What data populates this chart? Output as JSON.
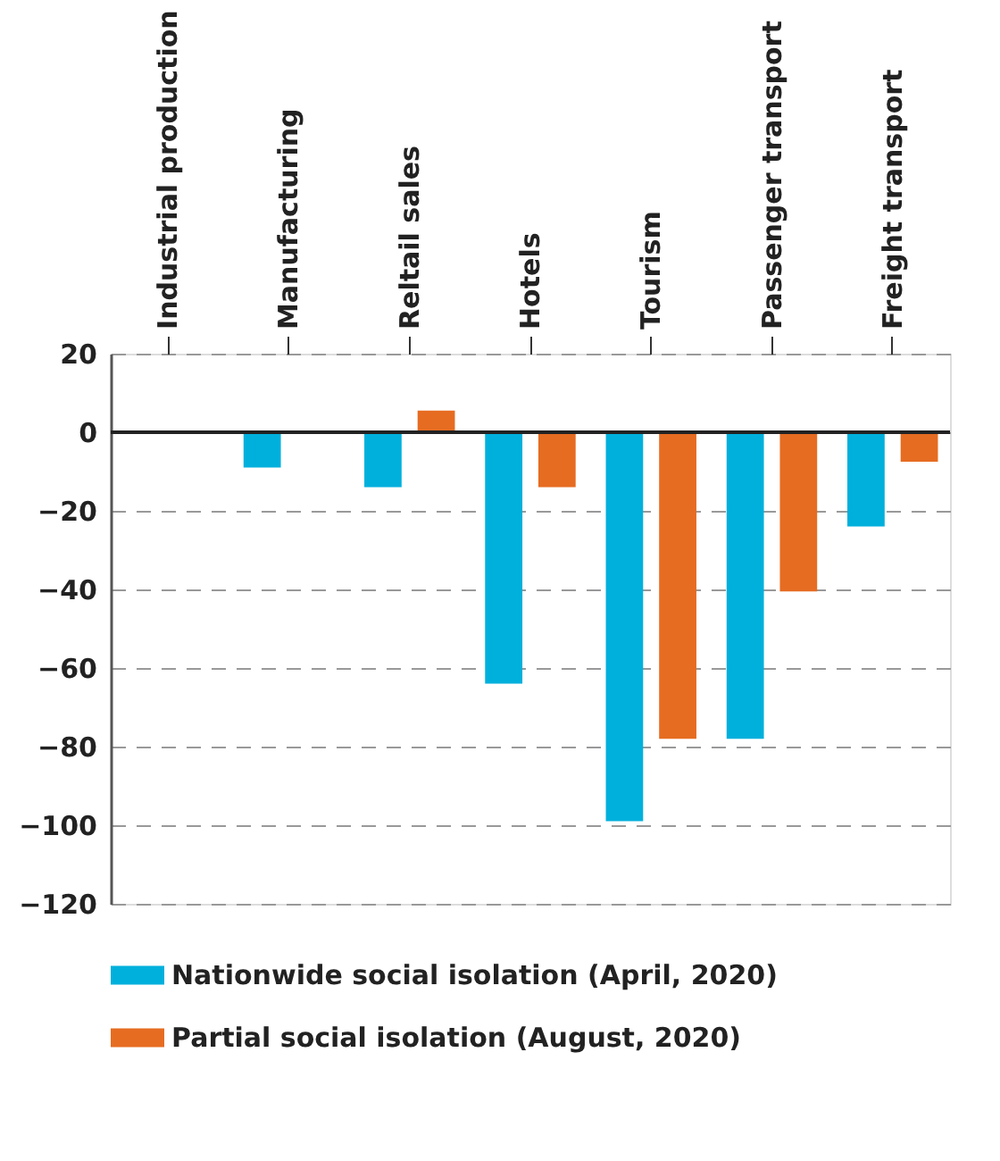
{
  "chart_data": {
    "type": "bar",
    "categories": [
      "Industrial production",
      "Manufacturing",
      "Reltail sales",
      "Hotels",
      "Tourism",
      "Passenger transport",
      "Freight transport"
    ],
    "series": [
      {
        "name": "Nationwide social isolation (April, 2020)",
        "color": "#00b0dc",
        "values": [
          null,
          -9,
          -14,
          -64,
          -99,
          -78,
          -24
        ]
      },
      {
        "name": "Partial social isolation (August, 2020)",
        "color": "#e66c21",
        "values": [
          null,
          null,
          5.5,
          -14,
          -78,
          -40.5,
          -7.5
        ]
      }
    ],
    "ylim": [
      -120,
      20
    ],
    "yticks": [
      20,
      0,
      -20,
      -40,
      -60,
      -80,
      -100,
      -120
    ],
    "grid": "y",
    "legend": "bottom",
    "ref_lines": [
      {
        "axis": "y",
        "value": 0,
        "color": "#222222"
      }
    ]
  }
}
